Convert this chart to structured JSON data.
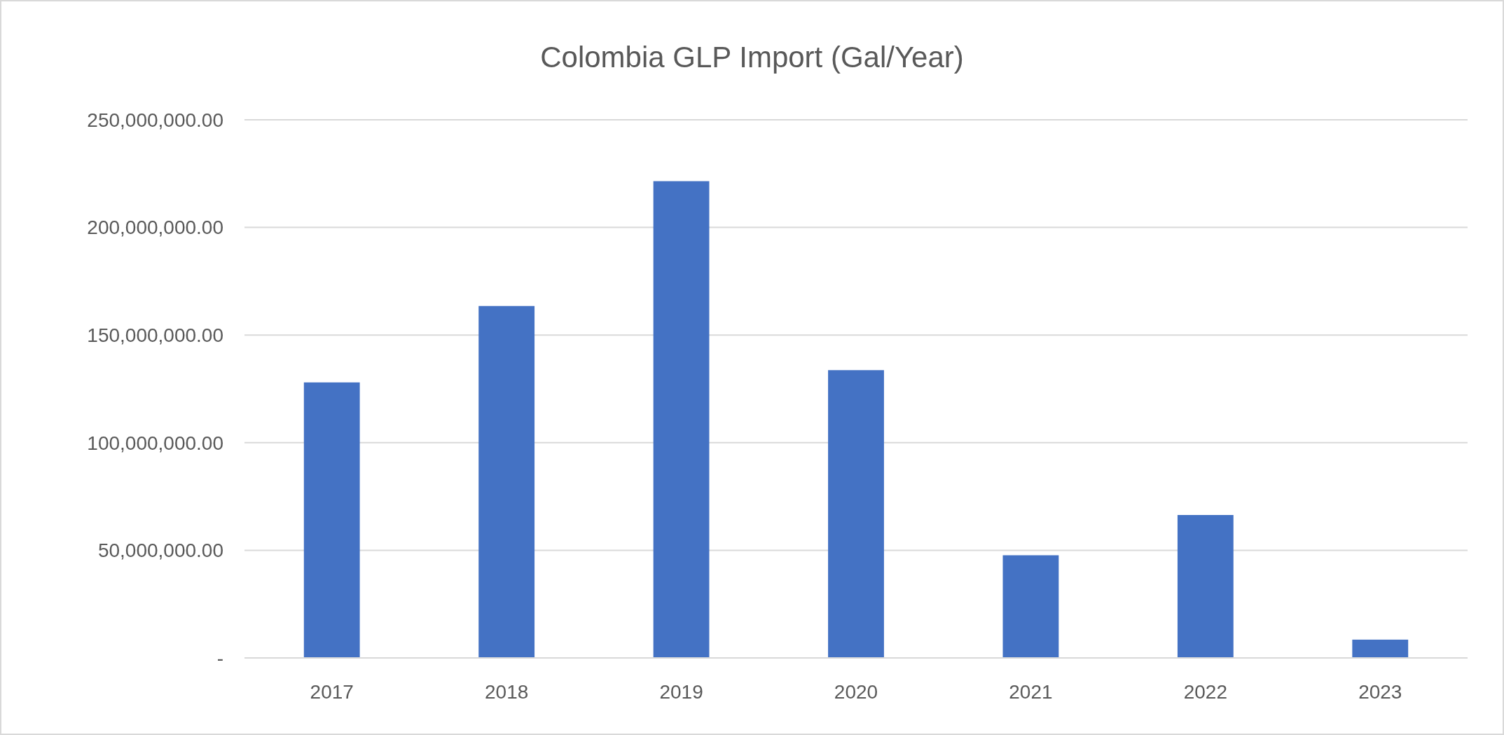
{
  "chart_data": {
    "type": "bar",
    "title": "Colombia GLP Import (Gal/Year)",
    "categories": [
      "2017",
      "2018",
      "2019",
      "2020",
      "2021",
      "2022",
      "2023"
    ],
    "values": [
      128000000,
      163500000,
      221500000,
      133700000,
      47700000,
      66400000,
      8500000
    ],
    "color": "#4472c4",
    "ylim": [
      0,
      250000000
    ],
    "yticks": [
      {
        "value": 0,
        "label": "-"
      },
      {
        "value": 50000000,
        "label": "50,000,000.00"
      },
      {
        "value": 100000000,
        "label": "100,000,000.00"
      },
      {
        "value": 150000000,
        "label": "150,000,000.00"
      },
      {
        "value": 200000000,
        "label": "200,000,000.00"
      },
      {
        "value": 250000000,
        "label": "250,000,000.00"
      }
    ],
    "grid": "y"
  }
}
